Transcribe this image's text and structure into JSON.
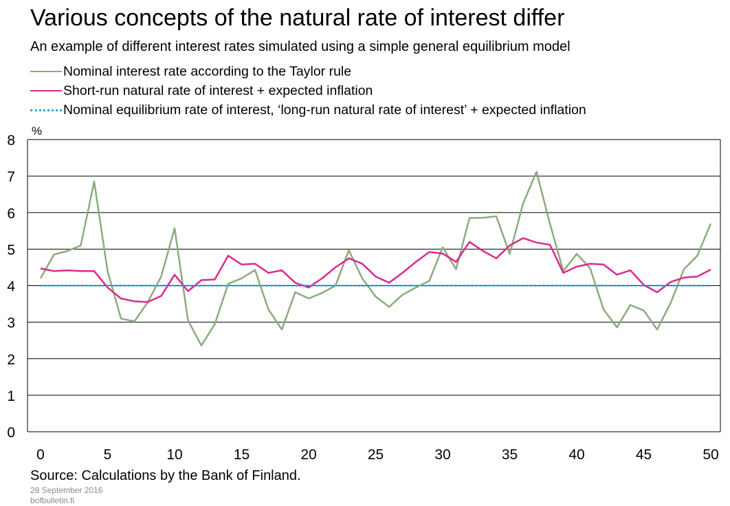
{
  "header": {
    "title": "Various concepts of the natural rate of interest differ",
    "subtitle": "An example of different interest rates simulated using a simple general equilibrium model"
  },
  "footer": {
    "source": "Source: Calculations by the Bank of Finland.",
    "date": "28 September 2016",
    "site": "bofbulletin.fi"
  },
  "chart_data": {
    "type": "line",
    "ylabel": "%",
    "xlim": [
      0,
      50
    ],
    "ylim": [
      0,
      8
    ],
    "xticks": [
      0,
      5,
      10,
      15,
      20,
      25,
      30,
      35,
      40,
      45,
      50
    ],
    "yticks": [
      0,
      1,
      2,
      3,
      4,
      5,
      6,
      7,
      8
    ],
    "grid": true,
    "legend_position": "top",
    "x": [
      0,
      1,
      2,
      3,
      4,
      5,
      6,
      7,
      8,
      9,
      10,
      11,
      12,
      13,
      14,
      15,
      16,
      17,
      18,
      19,
      20,
      21,
      22,
      23,
      24,
      25,
      26,
      27,
      28,
      29,
      30,
      31,
      32,
      33,
      34,
      35,
      36,
      37,
      38,
      39,
      40,
      41,
      42,
      43,
      44,
      45,
      46,
      47,
      48,
      49,
      50
    ],
    "series": [
      {
        "name": "Nominal interest rate according to the Taylor rule",
        "color": "#8aab7e",
        "style": "solid",
        "values": [
          4.2,
          4.85,
          4.95,
          5.1,
          6.85,
          4.4,
          3.1,
          3.02,
          3.55,
          4.25,
          5.57,
          3.05,
          2.36,
          2.95,
          4.05,
          4.2,
          4.43,
          3.35,
          2.8,
          3.82,
          3.65,
          3.8,
          4.0,
          4.97,
          4.2,
          3.7,
          3.42,
          3.75,
          3.95,
          4.13,
          5.05,
          4.45,
          5.85,
          5.86,
          5.9,
          4.87,
          6.25,
          7.12,
          5.7,
          4.4,
          4.87,
          4.48,
          3.35,
          2.86,
          3.47,
          3.32,
          2.8,
          3.52,
          4.45,
          4.82,
          5.7
        ]
      },
      {
        "name": "Short-run natural rate of interest + expected inflation",
        "color": "#dc2890",
        "style": "solid",
        "values": [
          4.47,
          4.4,
          4.42,
          4.4,
          4.4,
          3.95,
          3.65,
          3.57,
          3.55,
          3.72,
          4.3,
          3.85,
          4.15,
          4.17,
          4.82,
          4.58,
          4.6,
          4.35,
          4.42,
          4.08,
          3.95,
          4.2,
          4.5,
          4.75,
          4.6,
          4.25,
          4.08,
          4.35,
          4.65,
          4.92,
          4.88,
          4.65,
          5.2,
          4.95,
          4.75,
          5.1,
          5.3,
          5.18,
          5.12,
          4.35,
          4.52,
          4.6,
          4.58,
          4.3,
          4.42,
          4.02,
          3.82,
          4.1,
          4.22,
          4.25,
          4.44
        ]
      },
      {
        "name": "Nominal equilibrium rate of interest, ‘long-run natural rate of interest’ + expected inflation",
        "color": "#2ea8d8",
        "style": "dotted",
        "values": [
          4,
          4,
          4,
          4,
          4,
          4,
          4,
          4,
          4,
          4,
          4,
          4,
          4,
          4,
          4,
          4,
          4,
          4,
          4,
          4,
          4,
          4,
          4,
          4,
          4,
          4,
          4,
          4,
          4,
          4,
          4,
          4,
          4,
          4,
          4,
          4,
          4,
          4,
          4,
          4,
          4,
          4,
          4,
          4,
          4,
          4,
          4,
          4,
          4,
          4,
          4
        ]
      }
    ]
  }
}
